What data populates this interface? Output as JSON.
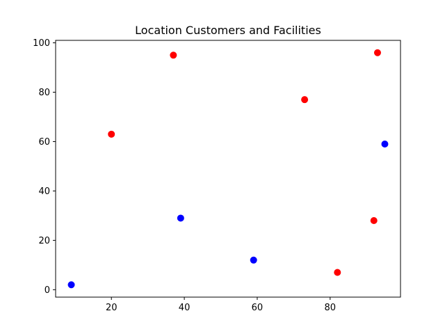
{
  "chart_data": {
    "type": "scatter",
    "title": "Location Customers and Facilities",
    "xlabel": "",
    "ylabel": "",
    "xlim": [
      4.7,
      99.3
    ],
    "ylim": [
      -3.0,
      101.0
    ],
    "x_ticks": [
      20,
      40,
      60,
      80
    ],
    "y_ticks": [
      0,
      20,
      40,
      60,
      80,
      100
    ],
    "grid": false,
    "series": [
      {
        "color": "#ff0000",
        "points": [
          {
            "x": 20,
            "y": 63
          },
          {
            "x": 37,
            "y": 95
          },
          {
            "x": 73,
            "y": 77
          },
          {
            "x": 93,
            "y": 96
          },
          {
            "x": 92,
            "y": 28
          },
          {
            "x": 82,
            "y": 7
          }
        ]
      },
      {
        "color": "#0000ff",
        "points": [
          {
            "x": 9,
            "y": 2
          },
          {
            "x": 39,
            "y": 29
          },
          {
            "x": 59,
            "y": 12
          },
          {
            "x": 95,
            "y": 59
          }
        ]
      }
    ]
  }
}
